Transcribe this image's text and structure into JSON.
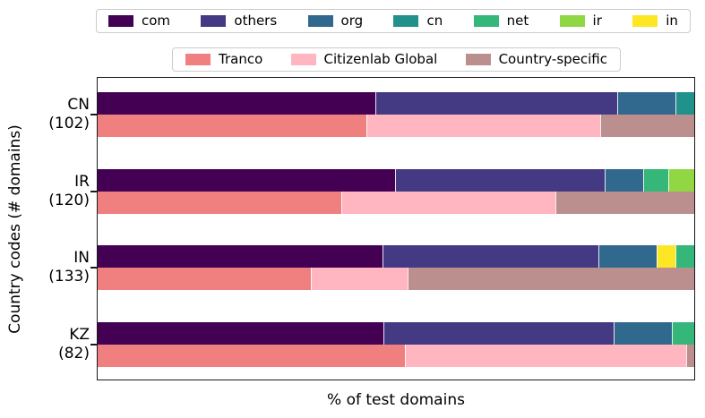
{
  "figure": {
    "xlabel": "% of test domains",
    "ylabel": "Country codes (# domains)"
  },
  "tld_legend": {
    "items": [
      {
        "label": "com",
        "color": "#440154",
        "icon": "com-swatch"
      },
      {
        "label": "others",
        "color": "#443983",
        "icon": "others-swatch"
      },
      {
        "label": "org",
        "color": "#31688e",
        "icon": "org-swatch"
      },
      {
        "label": "cn",
        "color": "#21918c",
        "icon": "cn-swatch"
      },
      {
        "label": "net",
        "color": "#35b779",
        "icon": "net-swatch"
      },
      {
        "label": "ir",
        "color": "#90d743",
        "icon": "ir-swatch"
      },
      {
        "label": "in",
        "color": "#fde725",
        "icon": "in-swatch"
      }
    ]
  },
  "source_legend": {
    "items": [
      {
        "label": "Tranco",
        "color": "#f08080",
        "icon": "tranco-swatch"
      },
      {
        "label": "Citizenlab Global",
        "color": "#ffb6c1",
        "icon": "citizenlab-global-swatch"
      },
      {
        "label": "Country-specific",
        "color": "#bc8f8f",
        "icon": "country-specific-swatch"
      }
    ]
  },
  "chart_data": {
    "type": "bar",
    "orientation": "horizontal",
    "stacked": true,
    "title": "",
    "xlabel": "% of test domains",
    "ylabel": "Country codes (# domains)",
    "xlim": [
      0,
      100
    ],
    "x_tick_labels_visible": false,
    "grid": false,
    "legend_positions": {
      "tld": "top row 1",
      "source": "top row 2"
    },
    "groups": [
      {
        "country": "CN",
        "domain_count": 102,
        "tick_label_line1": "CN",
        "tick_label_line2": "(102)",
        "tld_bar": [
          {
            "label": "com",
            "percent": 46.5
          },
          {
            "label": "others",
            "percent": 40.6
          },
          {
            "label": "org",
            "percent": 9.8
          },
          {
            "label": "cn",
            "percent": 3.1
          }
        ],
        "source_bar": [
          {
            "label": "Tranco",
            "percent": 45.1
          },
          {
            "label": "Citizenlab Global",
            "percent": 39.2
          },
          {
            "label": "Country-specific",
            "percent": 15.7
          }
        ]
      },
      {
        "country": "IR",
        "domain_count": 120,
        "tick_label_line1": "IR",
        "tick_label_line2": "(120)",
        "tld_bar": [
          {
            "label": "com",
            "percent": 49.8
          },
          {
            "label": "others",
            "percent": 35.2
          },
          {
            "label": "org",
            "percent": 6.4
          },
          {
            "label": "net",
            "percent": 4.3
          },
          {
            "label": "ir",
            "percent": 4.3
          }
        ],
        "source_bar": [
          {
            "label": "Tranco",
            "percent": 40.9
          },
          {
            "label": "Citizenlab Global",
            "percent": 35.8
          },
          {
            "label": "Country-specific",
            "percent": 23.3
          }
        ]
      },
      {
        "country": "IN",
        "domain_count": 133,
        "tick_label_line1": "IN",
        "tick_label_line2": "(133)",
        "tld_bar": [
          {
            "label": "com",
            "percent": 47.7
          },
          {
            "label": "others",
            "percent": 36.3
          },
          {
            "label": "org",
            "percent": 9.7
          },
          {
            "label": "in",
            "percent": 3.1
          },
          {
            "label": "net",
            "percent": 3.2
          }
        ],
        "source_bar": [
          {
            "label": "Tranco",
            "percent": 35.7
          },
          {
            "label": "Citizenlab Global",
            "percent": 16.2
          },
          {
            "label": "Country-specific",
            "percent": 48.1
          }
        ]
      },
      {
        "country": "KZ",
        "domain_count": 82,
        "tick_label_line1": "KZ",
        "tick_label_line2": "(82)",
        "tld_bar": [
          {
            "label": "com",
            "percent": 47.9
          },
          {
            "label": "others",
            "percent": 38.6
          },
          {
            "label": "org",
            "percent": 9.8
          },
          {
            "label": "net",
            "percent": 3.7
          }
        ],
        "source_bar": [
          {
            "label": "Tranco",
            "percent": 51.5
          },
          {
            "label": "Citizenlab Global",
            "percent": 47.2
          },
          {
            "label": "Country-specific",
            "percent": 1.3
          }
        ]
      }
    ]
  }
}
